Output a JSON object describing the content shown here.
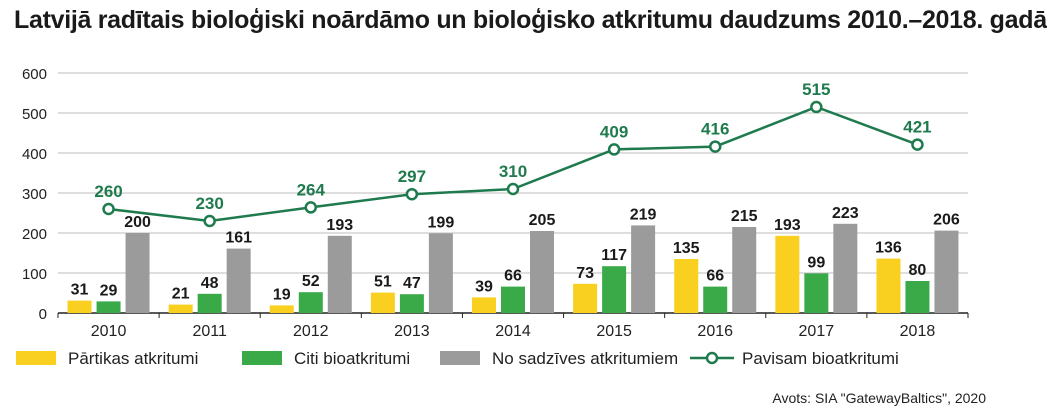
{
  "title": "Latvijā radītais bioloģiski noārdāmo un bioloģisko atkritumu daudzums 2010.–2018. gadā",
  "source": "Avots: SIA \"GatewayBaltics\", 2020",
  "chart_data": {
    "type": "bar",
    "categories": [
      "2010",
      "2011",
      "2012",
      "2013",
      "2014",
      "2015",
      "2016",
      "2017",
      "2018"
    ],
    "ylim": [
      0,
      600
    ],
    "yticks": [
      0,
      100,
      200,
      300,
      400,
      500,
      600
    ],
    "grid": true,
    "legend_position": "bottom",
    "series": [
      {
        "name": "Pārtikas atkritumi",
        "kind": "bar",
        "color": "#f9d01f",
        "values": [
          31,
          21,
          19,
          51,
          39,
          73,
          135,
          193,
          136
        ]
      },
      {
        "name": "Citi bioatkritumi",
        "kind": "bar",
        "color": "#3aaa49",
        "values": [
          29,
          48,
          52,
          47,
          66,
          117,
          66,
          99,
          80
        ]
      },
      {
        "name": "No sadzīves atkritumiem",
        "kind": "bar",
        "color": "#9b9b9b",
        "values": [
          200,
          161,
          193,
          199,
          205,
          219,
          215,
          223,
          206
        ]
      },
      {
        "name": "Pavisam bioatkritumi",
        "kind": "line",
        "color": "#1f7b4d",
        "values": [
          260,
          230,
          264,
          297,
          310,
          409,
          416,
          515,
          421
        ]
      }
    ]
  }
}
